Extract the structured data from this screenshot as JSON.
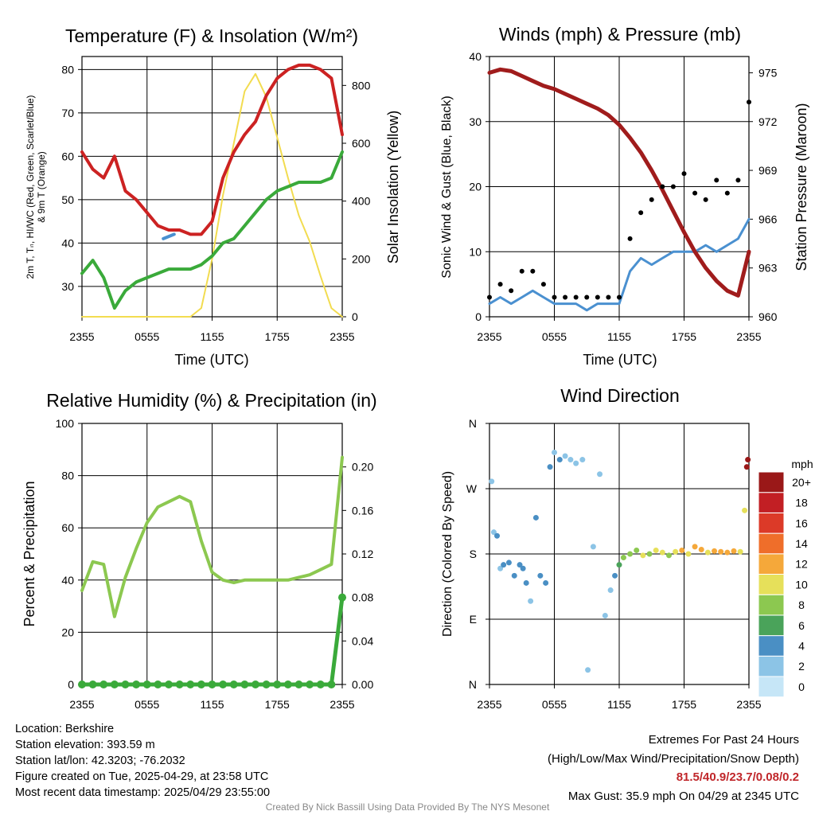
{
  "panels": {
    "temperature": {
      "title": "Temperature (F) & Insolation (W/m²)",
      "ylabel_left_line1": "2m T, Tₙ, HI/WC (Red, Green, Scarlet/Blue)",
      "ylabel_left_line2": "& 9m T (Orange)",
      "ylabel_right": "Solar Insolation (Yellow)",
      "xlabel": "Time (UTC)",
      "xticks": [
        "2355",
        "0555",
        "1155",
        "1755",
        "2355"
      ],
      "yticks_left": [
        "30",
        "40",
        "50",
        "60",
        "70",
        "80"
      ],
      "yticks_right": [
        "0",
        "200",
        "400",
        "600",
        "800"
      ]
    },
    "winds": {
      "title": "Winds (mph) & Pressure (mb)",
      "ylabel_left": "Sonic Wind & Gust (Blue, Black)",
      "ylabel_right": "Station Pressure (Maroon)",
      "xlabel": "Time (UTC)",
      "xticks": [
        "2355",
        "0555",
        "1155",
        "1755",
        "2355"
      ],
      "yticks_left": [
        "0",
        "10",
        "20",
        "30",
        "40"
      ],
      "yticks_right": [
        "960",
        "963",
        "966",
        "969",
        "972",
        "975"
      ]
    },
    "humidity": {
      "title": "Relative Humidity (%) & Precipitation (in)",
      "ylabel_left": "Percent & Precipitation",
      "xticks": [
        "2355",
        "0555",
        "1155",
        "1755",
        "2355"
      ],
      "yticks_left": [
        "0",
        "20",
        "40",
        "60",
        "80",
        "100"
      ],
      "yticks_right": [
        "0.00",
        "0.04",
        "0.08",
        "0.12",
        "0.16",
        "0.20"
      ]
    },
    "direction": {
      "title": "Wind Direction",
      "ylabel_left": "Direction (Colored By Speed)",
      "xticks": [
        "2355",
        "0555",
        "1155",
        "1755",
        "2355"
      ],
      "yticks_left": [
        "N",
        "E",
        "S",
        "W",
        "N"
      ],
      "colorbar_title": "mph",
      "colorbar_labels": [
        "0",
        "2",
        "4",
        "6",
        "8",
        "10",
        "12",
        "14",
        "16",
        "18",
        "20+"
      ],
      "colorbar_colors": [
        "#c6e6f7",
        "#8cc4e6",
        "#4a8fc4",
        "#4aa35a",
        "#8cc850",
        "#e6e05a",
        "#f5a83a",
        "#ef6e2a",
        "#dc3a28",
        "#c21f24",
        "#9a1818"
      ]
    }
  },
  "info": {
    "location": "Location: Berkshire",
    "elevation": "Station elevation: 393.59 m",
    "latlon": "Station lat/lon: 42.3203; -76.2032",
    "created": "Figure created on Tue, 2025-04-29, at 23:58 UTC",
    "recent": "Most recent data timestamp: 2025/04/29 23:55:00"
  },
  "extremes": {
    "heading": "Extremes For Past 24 Hours",
    "legend": "(High/Low/Max Wind/Precipitation/Snow Depth)",
    "values": "81.5/40.9/23.7/0.08/0.2",
    "max_gust": "Max Gust: 35.9 mph On 04/29 at 2345 UTC"
  },
  "credit": "Created By Nick Bassill Using Data Provided By The NYS Mesonet",
  "colors": {
    "temperature": "#cc2222",
    "dewpoint": "#3aaa3a",
    "windchill": "#4a90d0",
    "insolation": "#f2dc50",
    "wind": "#4a90d0",
    "gust": "#000000",
    "pressure": "#a01c1c",
    "humidity": "#8cc850",
    "precip": "#3aaa3a"
  },
  "chart_data": [
    {
      "type": "line",
      "title": "Temperature (F) & Insolation (W/m²)",
      "xlabel": "Time (UTC)",
      "x_hours": [
        0,
        1,
        2,
        3,
        4,
        5,
        6,
        7,
        8,
        9,
        10,
        11,
        12,
        13,
        14,
        15,
        16,
        17,
        18,
        19,
        20,
        21,
        22,
        23,
        24
      ],
      "ylim": [
        23,
        83
      ],
      "y2lim": [
        0,
        900
      ],
      "series": [
        {
          "name": "2m T",
          "axis": "left",
          "values": [
            61,
            57,
            55,
            60,
            52,
            50,
            47,
            44,
            43,
            43,
            42,
            42,
            45,
            55,
            61,
            65,
            68,
            74,
            78,
            80,
            81,
            81,
            80,
            78,
            65
          ]
        },
        {
          "name": "Td",
          "axis": "left",
          "values": [
            33,
            36,
            32,
            25,
            29,
            31,
            32,
            33,
            34,
            34,
            34,
            35,
            37,
            40,
            41,
            44,
            47,
            50,
            52,
            53,
            54,
            54,
            54,
            55,
            61
          ]
        },
        {
          "name": "Solar Insolation",
          "axis": "right",
          "values": [
            0,
            0,
            0,
            0,
            0,
            0,
            0,
            0,
            0,
            0,
            0,
            30,
            200,
            420,
            600,
            780,
            840,
            760,
            620,
            480,
            350,
            260,
            140,
            30,
            0
          ]
        }
      ],
      "points_windchill": [
        {
          "x": 7.5,
          "y": 41
        },
        {
          "x": 8.5,
          "y": 42
        }
      ]
    },
    {
      "type": "line",
      "title": "Winds (mph) & Pressure (mb)",
      "xlabel": "Time (UTC)",
      "x_hours": [
        0,
        1,
        2,
        3,
        4,
        5,
        6,
        7,
        8,
        9,
        10,
        11,
        12,
        13,
        14,
        15,
        16,
        17,
        18,
        19,
        20,
        21,
        22,
        23,
        24
      ],
      "ylim": [
        0,
        40
      ],
      "y2lim": [
        960,
        976
      ],
      "series": [
        {
          "name": "Sonic Wind",
          "axis": "left",
          "values": [
            2,
            3,
            2,
            3,
            4,
            3,
            2,
            2,
            2,
            1,
            2,
            2,
            2,
            7,
            9,
            8,
            9,
            10,
            10,
            10,
            11,
            10,
            11,
            12,
            15
          ]
        },
        {
          "name": "Gust",
          "axis": "left",
          "values": [
            3,
            5,
            4,
            7,
            7,
            5,
            3,
            3,
            3,
            3,
            3,
            3,
            3,
            12,
            16,
            18,
            20,
            20,
            22,
            19,
            18,
            21,
            19,
            21,
            33
          ]
        },
        {
          "name": "Station Pressure",
          "axis": "right",
          "values": [
            975.0,
            975.2,
            975.1,
            974.8,
            974.5,
            974.2,
            974.0,
            973.7,
            973.4,
            973.1,
            972.8,
            972.4,
            971.8,
            971.0,
            970.1,
            969.0,
            967.8,
            966.5,
            965.2,
            964.0,
            963.0,
            962.2,
            961.6,
            961.3,
            964.0
          ]
        }
      ]
    },
    {
      "type": "line",
      "title": "Relative Humidity (%) & Precipitation (in)",
      "x_hours": [
        0,
        1,
        2,
        3,
        4,
        5,
        6,
        7,
        8,
        9,
        10,
        11,
        12,
        13,
        14,
        15,
        16,
        17,
        18,
        19,
        20,
        21,
        22,
        23,
        24
      ],
      "ylim": [
        0,
        100
      ],
      "y2lim": [
        0,
        0.24
      ],
      "series": [
        {
          "name": "Relative Humidity",
          "axis": "left",
          "values": [
            36,
            47,
            46,
            26,
            41,
            52,
            62,
            68,
            70,
            72,
            70,
            55,
            43,
            40,
            39,
            40,
            40,
            40,
            40,
            40,
            41,
            42,
            44,
            46,
            87
          ]
        },
        {
          "name": "Precipitation",
          "axis": "right",
          "values": [
            0,
            0,
            0,
            0,
            0,
            0,
            0,
            0,
            0,
            0,
            0,
            0,
            0,
            0,
            0,
            0,
            0,
            0,
            0,
            0,
            0,
            0,
            0,
            0,
            0.08
          ]
        }
      ]
    },
    {
      "type": "scatter",
      "title": "Wind Direction",
      "ylabel": "Direction (Colored By Speed)",
      "y_order": [
        "N",
        "E",
        "S",
        "W",
        "N"
      ],
      "ylim_deg": [
        0,
        360
      ],
      "points": [
        {
          "x": 0.2,
          "dir": 280,
          "spd": 2
        },
        {
          "x": 0.4,
          "dir": 210,
          "spd": 2
        },
        {
          "x": 0.7,
          "dir": 205,
          "spd": 3
        },
        {
          "x": 1.0,
          "dir": 160,
          "spd": 2
        },
        {
          "x": 1.3,
          "dir": 165,
          "spd": 3
        },
        {
          "x": 1.8,
          "dir": 168,
          "spd": 4
        },
        {
          "x": 2.3,
          "dir": 150,
          "spd": 3
        },
        {
          "x": 2.8,
          "dir": 165,
          "spd": 4
        },
        {
          "x": 3.1,
          "dir": 160,
          "spd": 4
        },
        {
          "x": 3.4,
          "dir": 140,
          "spd": 3
        },
        {
          "x": 3.8,
          "dir": 115,
          "spd": 2
        },
        {
          "x": 4.3,
          "dir": 230,
          "spd": 3
        },
        {
          "x": 4.7,
          "dir": 150,
          "spd": 4
        },
        {
          "x": 5.2,
          "dir": 140,
          "spd": 3
        },
        {
          "x": 5.6,
          "dir": 300,
          "spd": 3
        },
        {
          "x": 6.0,
          "dir": 320,
          "spd": 2
        },
        {
          "x": 6.5,
          "dir": 310,
          "spd": 3
        },
        {
          "x": 7.0,
          "dir": 315,
          "spd": 2
        },
        {
          "x": 7.5,
          "dir": 310,
          "spd": 2
        },
        {
          "x": 8.0,
          "dir": 305,
          "spd": 2
        },
        {
          "x": 8.6,
          "dir": 310,
          "spd": 2
        },
        {
          "x": 9.1,
          "dir": 20,
          "spd": 2
        },
        {
          "x": 9.6,
          "dir": 190,
          "spd": 2
        },
        {
          "x": 10.2,
          "dir": 290,
          "spd": 1
        },
        {
          "x": 10.7,
          "dir": 95,
          "spd": 2
        },
        {
          "x": 11.2,
          "dir": 130,
          "spd": 2
        },
        {
          "x": 11.6,
          "dir": 150,
          "spd": 4
        },
        {
          "x": 12.0,
          "dir": 165,
          "spd": 5
        },
        {
          "x": 12.4,
          "dir": 175,
          "spd": 7
        },
        {
          "x": 13.0,
          "dir": 180,
          "spd": 8
        },
        {
          "x": 13.6,
          "dir": 185,
          "spd": 8
        },
        {
          "x": 14.2,
          "dir": 178,
          "spd": 9
        },
        {
          "x": 14.8,
          "dir": 180,
          "spd": 8
        },
        {
          "x": 15.4,
          "dir": 185,
          "spd": 9
        },
        {
          "x": 16.0,
          "dir": 182,
          "spd": 10
        },
        {
          "x": 16.6,
          "dir": 178,
          "spd": 8
        },
        {
          "x": 17.2,
          "dir": 183,
          "spd": 10
        },
        {
          "x": 17.8,
          "dir": 185,
          "spd": 11
        },
        {
          "x": 18.4,
          "dir": 180,
          "spd": 9
        },
        {
          "x": 19.0,
          "dir": 190,
          "spd": 12
        },
        {
          "x": 19.6,
          "dir": 186,
          "spd": 11
        },
        {
          "x": 20.2,
          "dir": 182,
          "spd": 10
        },
        {
          "x": 20.8,
          "dir": 184,
          "spd": 11
        },
        {
          "x": 21.4,
          "dir": 183,
          "spd": 12
        },
        {
          "x": 22.0,
          "dir": 182,
          "spd": 12
        },
        {
          "x": 22.6,
          "dir": 184,
          "spd": 11
        },
        {
          "x": 23.2,
          "dir": 183,
          "spd": 10
        },
        {
          "x": 23.6,
          "dir": 240,
          "spd": 10
        },
        {
          "x": 23.8,
          "dir": 300,
          "spd": 20
        },
        {
          "x": 23.9,
          "dir": 310,
          "spd": 20
        }
      ]
    }
  ]
}
